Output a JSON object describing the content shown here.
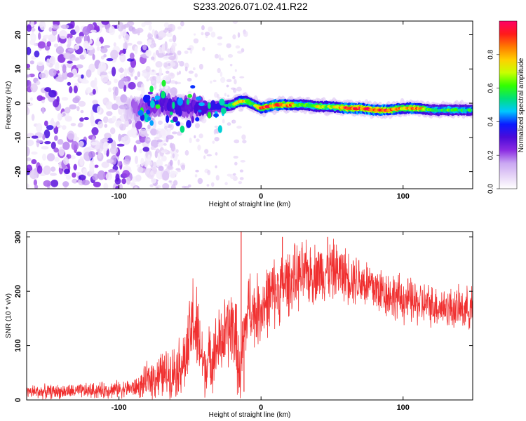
{
  "chart_data": [
    {
      "type": "heatmap",
      "title": "S233.2026.071.02.41.R22",
      "xlabel": "Height of straight line (km)",
      "ylabel": "Frequency (Hz)",
      "xlim": [
        -165,
        149
      ],
      "ylim": [
        -25,
        24
      ],
      "xticks": [
        -100,
        0,
        100
      ],
      "xtick_labels": [
        "-100",
        "0",
        "100"
      ],
      "yticks": [
        -20,
        -10,
        0,
        10,
        20
      ],
      "ytick_labels": [
        "-20",
        "-10",
        "0",
        "10",
        "20"
      ],
      "ridge": {
        "x": [
          -90,
          -80,
          -70,
          -60,
          -50,
          -40,
          -30,
          -20,
          -15,
          -10,
          -5,
          0,
          10,
          20,
          30,
          40,
          50,
          60,
          70,
          80,
          90,
          100,
          110,
          120,
          130,
          140,
          149
        ],
        "freq": [
          -1.5,
          -1.5,
          0,
          -1,
          -1.5,
          -1.5,
          -1,
          -0.5,
          0.5,
          0.5,
          -0.5,
          -1.5,
          -0.5,
          -0.5,
          -0.5,
          -1,
          -1,
          -1.5,
          -1.5,
          -2,
          -2,
          -1.5,
          -1.5,
          -2,
          -2,
          -2,
          -2
        ],
        "amplitude": [
          0.15,
          0.2,
          0.3,
          0.35,
          0.3,
          0.35,
          0.4,
          0.6,
          0.75,
          0.7,
          0.6,
          0.85,
          0.9,
          0.85,
          0.6,
          0.7,
          0.65,
          0.9,
          0.9,
          0.95,
          0.9,
          0.75,
          0.9,
          0.55,
          0.6,
          0.55,
          0.55
        ]
      },
      "noise_region_x": [
        -165,
        -80
      ],
      "colorbar": {
        "label": "Normalized spectral amplitude",
        "range": [
          0.0,
          1.0
        ],
        "ticks": [
          0.0,
          0.2,
          0.4,
          0.6,
          0.8
        ],
        "tick_labels": [
          "0.0",
          "0.2",
          "0.4",
          "0.6",
          "0.8"
        ],
        "colors": [
          "#ffffff",
          "#e6d4f7",
          "#c9a6f2",
          "#8a2be2",
          "#4b0bd9",
          "#0a1aff",
          "#00c8ff",
          "#00e07a",
          "#33ff00",
          "#c8ff00",
          "#ffd000",
          "#ff7a00",
          "#ff1a1a",
          "#ff0066"
        ]
      }
    },
    {
      "type": "line",
      "xlabel": "Height of straight line (km)",
      "ylabel": "SNR (10 * v/v)",
      "xlim": [
        -165,
        149
      ],
      "ylim": [
        0,
        310
      ],
      "xticks": [
        -100,
        0,
        100
      ],
      "xtick_labels": [
        "-100",
        "0",
        "100"
      ],
      "yticks": [
        0,
        100,
        200,
        300
      ],
      "ytick_labels": [
        "0",
        "100",
        "200",
        "300"
      ],
      "color": "#f03030",
      "envelope": {
        "x": [
          -165,
          -150,
          -130,
          -110,
          -90,
          -85,
          -78,
          -70,
          -60,
          -52,
          -48,
          -45,
          -40,
          -30,
          -20,
          -18,
          -15,
          -12,
          -8,
          -5,
          0,
          10,
          20,
          30,
          40,
          50,
          60,
          70,
          80,
          90,
          100,
          110,
          120,
          130,
          140,
          149
        ],
        "mean": [
          15,
          15,
          16,
          18,
          22,
          25,
          40,
          45,
          55,
          80,
          150,
          120,
          60,
          100,
          140,
          120,
          40,
          120,
          180,
          160,
          170,
          200,
          220,
          230,
          235,
          240,
          230,
          220,
          205,
          195,
          185,
          178,
          175,
          170,
          168,
          170
        ],
        "spread": [
          12,
          12,
          12,
          14,
          15,
          20,
          35,
          40,
          45,
          60,
          80,
          80,
          50,
          60,
          70,
          70,
          60,
          60,
          60,
          60,
          60,
          60,
          55,
          55,
          50,
          50,
          45,
          45,
          45,
          40,
          40,
          38,
          35,
          35,
          35,
          35
        ]
      },
      "spikes": [
        {
          "x": -14,
          "y": 310
        },
        {
          "x": -12,
          "y": 15
        },
        {
          "x": 15,
          "y": 300
        },
        {
          "x": 47,
          "y": 300
        }
      ]
    }
  ]
}
